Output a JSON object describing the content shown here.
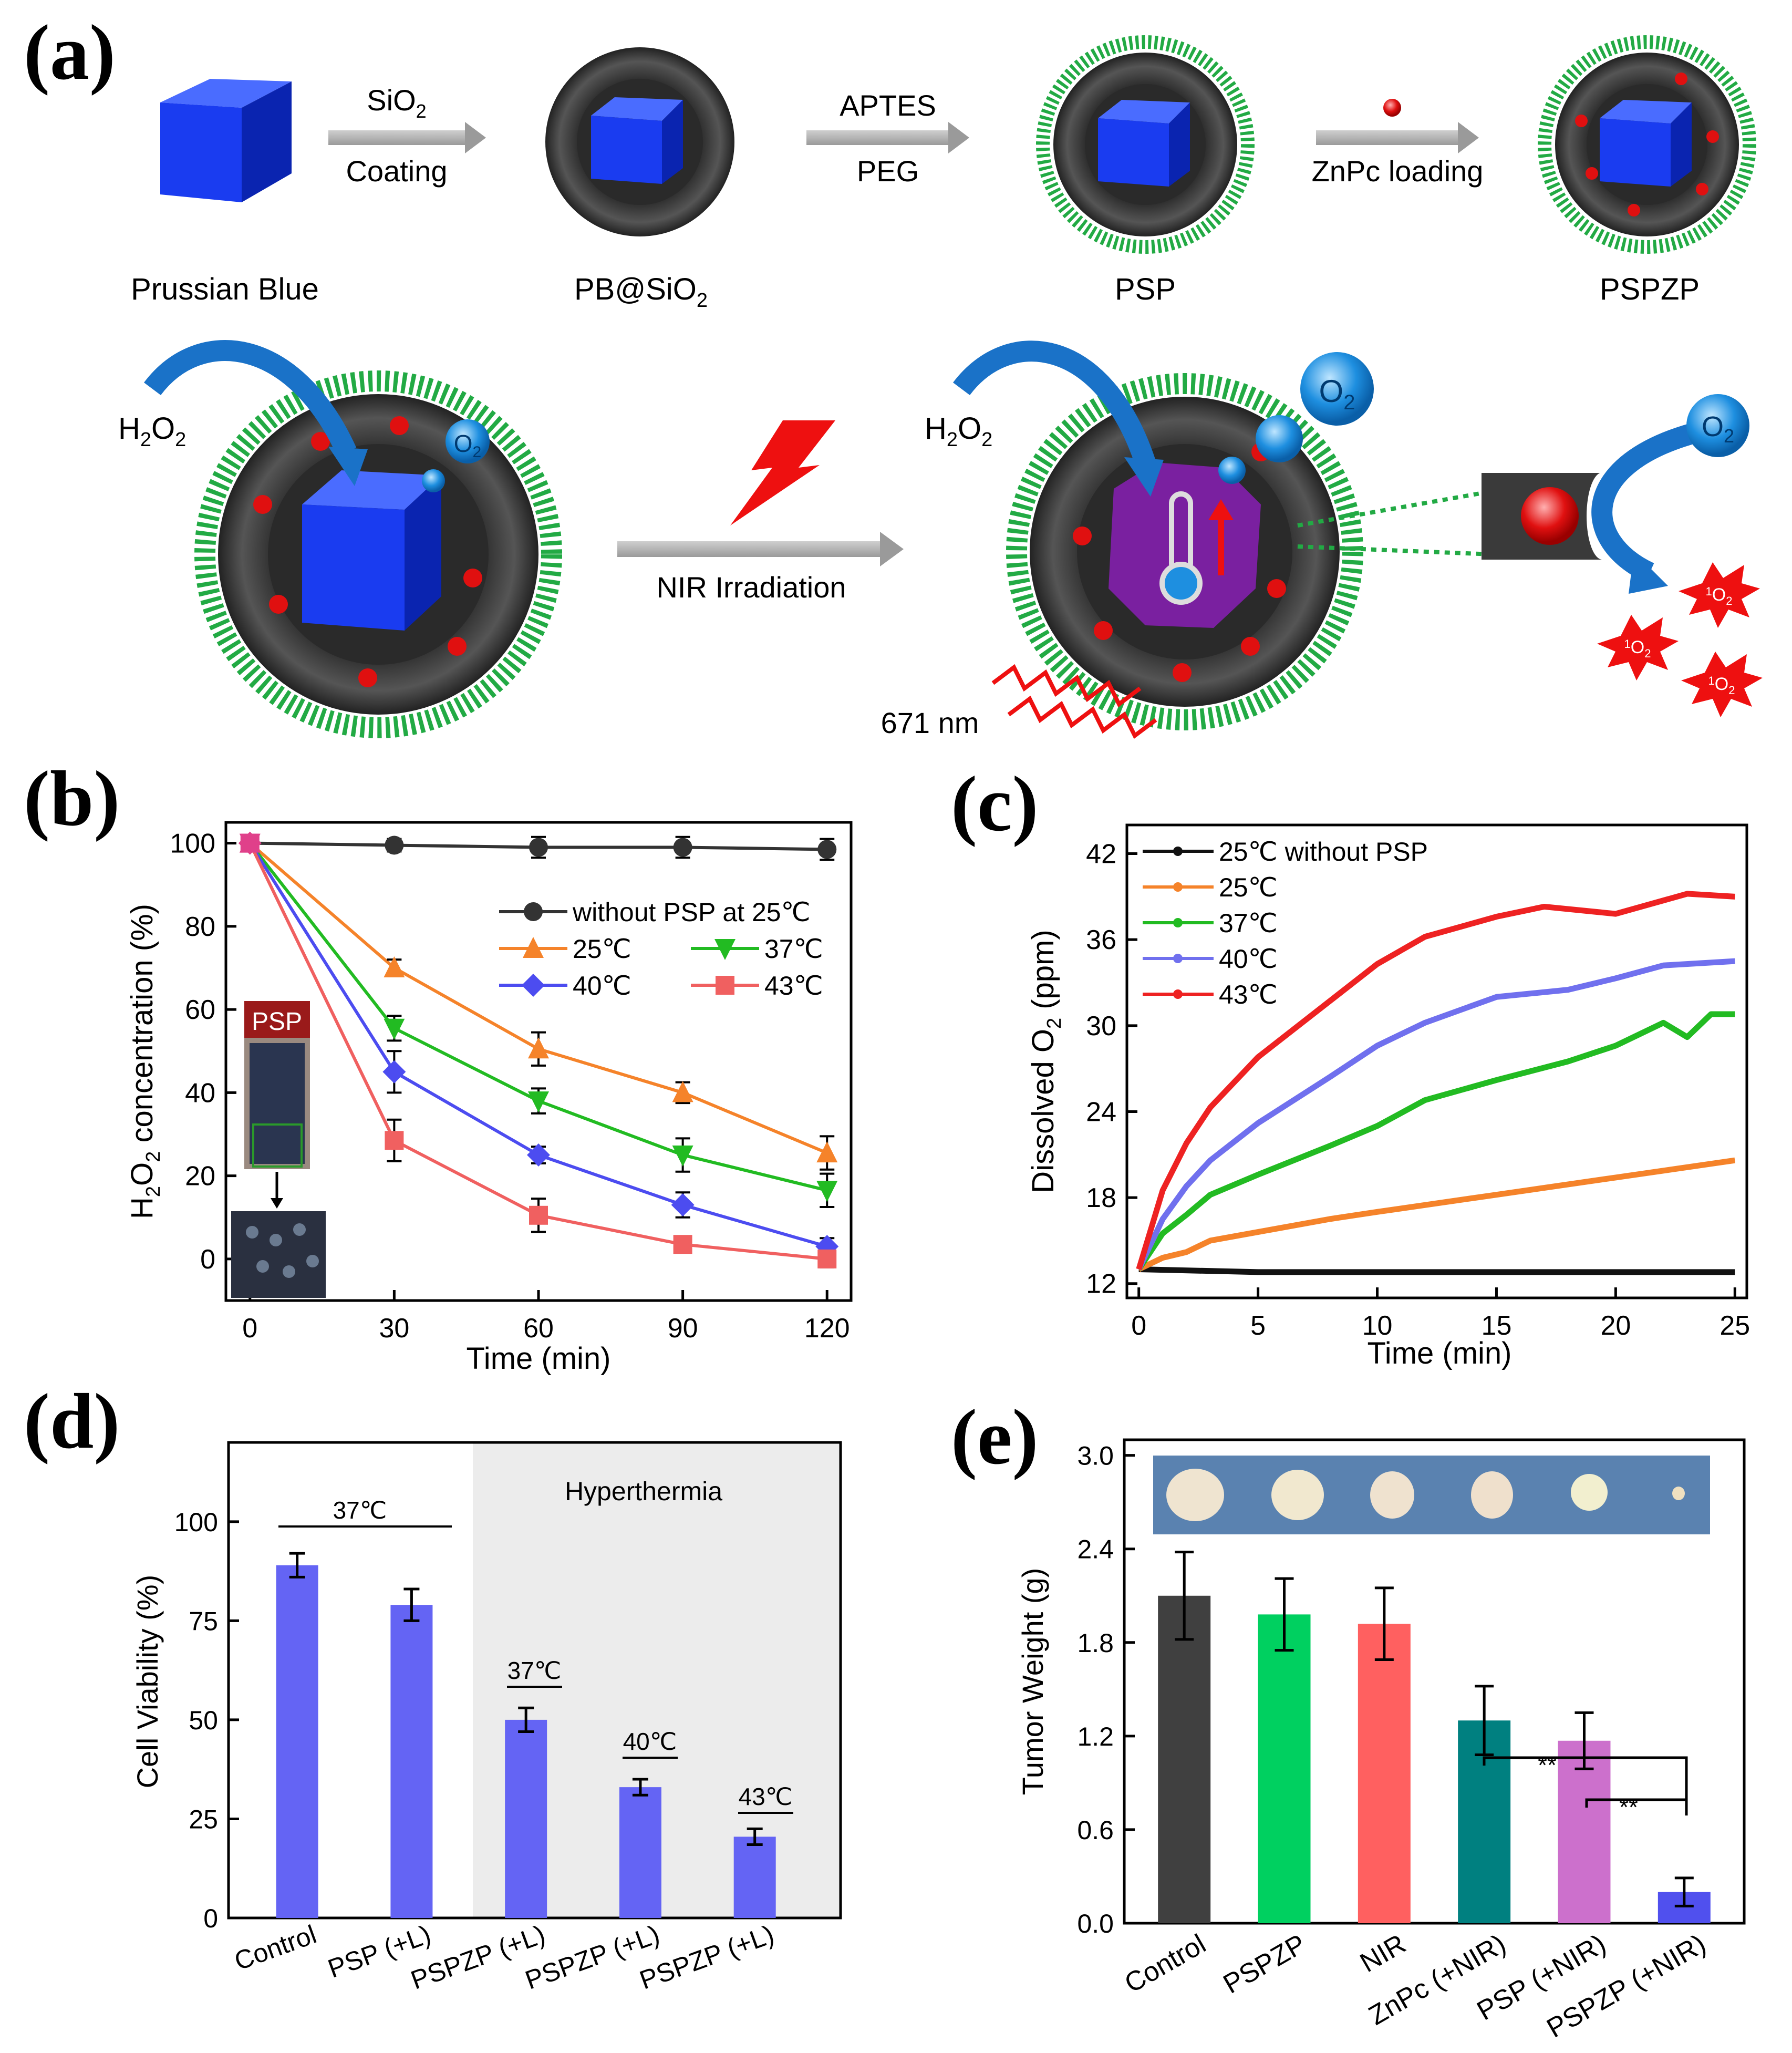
{
  "panels": {
    "a": {
      "label": "(a)",
      "steps": [
        "Prussian Blue",
        "PB@SiO2",
        "PSP",
        "PSPZP"
      ],
      "arrows": [
        {
          "top": "SiO2",
          "bottom": "Coating"
        },
        {
          "top": "APTES",
          "bottom": "PEG"
        },
        {
          "top": "",
          "bottom": "ZnPc loading"
        }
      ],
      "lower": {
        "h2o2": "H2O2",
        "o2": "O2",
        "arrow_label": "NIR Irradiation",
        "wavelength": "671 nm",
        "singlet_oxygen": "1O2"
      }
    },
    "b": {
      "label": "(b)",
      "inset_label": "PSP"
    },
    "c": {
      "label": "(c)"
    },
    "d": {
      "label": "(d)",
      "region_label": "Hyperthermia",
      "group_labels": [
        "37℃",
        "37℃",
        "40℃",
        "43℃"
      ]
    },
    "e": {
      "label": "(e)",
      "significance": [
        "**",
        "**"
      ]
    }
  },
  "colors": {
    "prussian_blue": "#1a3cf0",
    "shell": "#333333",
    "peg": "#22aa44",
    "znpc": "#e01010",
    "o2": "#1e8fe0"
  },
  "chart_data": [
    {
      "panel": "b",
      "type": "line",
      "xlabel": "Time (min)",
      "ylabel": "H2O2 concentration (%)",
      "x": [
        0,
        30,
        60,
        90,
        120
      ],
      "xlim": [
        -5,
        125
      ],
      "ylim": [
        -10,
        105
      ],
      "xticks": [
        0,
        30,
        60,
        90,
        120
      ],
      "yticks": [
        0,
        20,
        40,
        60,
        80,
        100
      ],
      "legend": "top-right",
      "series": [
        {
          "name": "without PSP at 25℃",
          "color": "#333333",
          "marker": "circle",
          "values": [
            100,
            99.5,
            99,
            99,
            98.5
          ],
          "errors": [
            0,
            1.5,
            2.5,
            2.5,
            2.5
          ]
        },
        {
          "name": "25℃",
          "color": "#f5832a",
          "marker": "triangle-up",
          "values": [
            100,
            70,
            50.5,
            40,
            25.5
          ],
          "errors": [
            0,
            2,
            4,
            2.5,
            4
          ]
        },
        {
          "name": "37℃",
          "color": "#22bb22",
          "marker": "triangle-down",
          "values": [
            100,
            55.5,
            38,
            25,
            16.5
          ],
          "errors": [
            0,
            3,
            3,
            4,
            4
          ]
        },
        {
          "name": "40℃",
          "color": "#4c4cf0",
          "marker": "diamond",
          "values": [
            100,
            45,
            25,
            13,
            3
          ],
          "errors": [
            0,
            5,
            2,
            3,
            2
          ]
        },
        {
          "name": "43℃",
          "color": "#f06060",
          "marker": "square",
          "values": [
            100,
            28.5,
            10.5,
            3.5,
            0
          ],
          "errors": [
            0,
            5,
            4,
            1.5,
            2
          ]
        }
      ]
    },
    {
      "panel": "c",
      "type": "line",
      "xlabel": "Time (min)",
      "ylabel": "Dissolved O2 (ppm)",
      "xlim": [
        -0.5,
        25.5
      ],
      "ylim": [
        11,
        44
      ],
      "xticks": [
        0,
        5,
        10,
        15,
        20,
        25
      ],
      "yticks": [
        12,
        18,
        24,
        30,
        36,
        42
      ],
      "legend": "top-left",
      "series": [
        {
          "name": "25℃ without PSP",
          "color": "#111111",
          "x": [
            0,
            5,
            10,
            15,
            20,
            25
          ],
          "values": [
            13,
            12.8,
            12.8,
            12.8,
            12.8,
            12.8
          ]
        },
        {
          "name": "25℃",
          "color": "#f5832a",
          "x": [
            0,
            1,
            2,
            3,
            5,
            8,
            10,
            15,
            20,
            25
          ],
          "values": [
            13,
            13.8,
            14.2,
            15,
            15.6,
            16.5,
            17.0,
            18.2,
            19.4,
            20.6
          ]
        },
        {
          "name": "37℃",
          "color": "#22bb22",
          "x": [
            0,
            1,
            2,
            3,
            5,
            8,
            10,
            12,
            15,
            18,
            20,
            22,
            23,
            24,
            25
          ],
          "values": [
            13,
            15.5,
            16.8,
            18.2,
            19.6,
            21.6,
            23.0,
            24.8,
            26.2,
            27.5,
            28.6,
            30.2,
            29.2,
            30.8,
            30.8
          ]
        },
        {
          "name": "40℃",
          "color": "#7070ee",
          "x": [
            0,
            1,
            2,
            3,
            5,
            8,
            10,
            12,
            15,
            18,
            20,
            22,
            25
          ],
          "values": [
            13,
            16.5,
            18.8,
            20.6,
            23.2,
            26.4,
            28.6,
            30.2,
            32.0,
            32.5,
            33.3,
            34.2,
            34.5
          ]
        },
        {
          "name": "43℃",
          "color": "#ee2222",
          "x": [
            0,
            1,
            2,
            3,
            5,
            8,
            10,
            12,
            15,
            17,
            20,
            23,
            25
          ],
          "values": [
            13,
            18.5,
            21.8,
            24.3,
            27.8,
            31.7,
            34.3,
            36.2,
            37.6,
            38.3,
            37.8,
            39.2,
            39.0
          ]
        }
      ]
    },
    {
      "panel": "d",
      "type": "bar",
      "ylabel": "Cell Viability (%)",
      "categories": [
        "Control",
        "PSP (+L)",
        "PSPZP (+L)",
        "PSPZP (+L)",
        "PSPZP (+L)"
      ],
      "values": [
        89,
        79,
        50,
        33,
        20.5
      ],
      "errors": [
        3,
        4,
        3,
        2,
        2
      ],
      "ylim": [
        0,
        120
      ],
      "yticks": [
        0,
        25,
        50,
        75,
        100
      ],
      "bar_color": "#6464f4"
    },
    {
      "panel": "e",
      "type": "bar",
      "ylabel": "Tumor Weight (g)",
      "categories": [
        "Control",
        "PSPZP",
        "NIR",
        "ZnPc (+NIR)",
        "PSP (+NIR)",
        "PSPZP (+NIR)"
      ],
      "values": [
        2.1,
        1.98,
        1.92,
        1.3,
        1.17,
        0.2
      ],
      "errors": [
        0.28,
        0.23,
        0.23,
        0.22,
        0.18,
        0.09
      ],
      "colors": [
        "#404040",
        "#00d060",
        "#ff6060",
        "#008080",
        "#cc70cc",
        "#5050ee"
      ],
      "ylim": [
        0,
        3.1
      ],
      "yticks": [
        0,
        0.6,
        1.2,
        1.8,
        2.4,
        3.0
      ]
    }
  ]
}
